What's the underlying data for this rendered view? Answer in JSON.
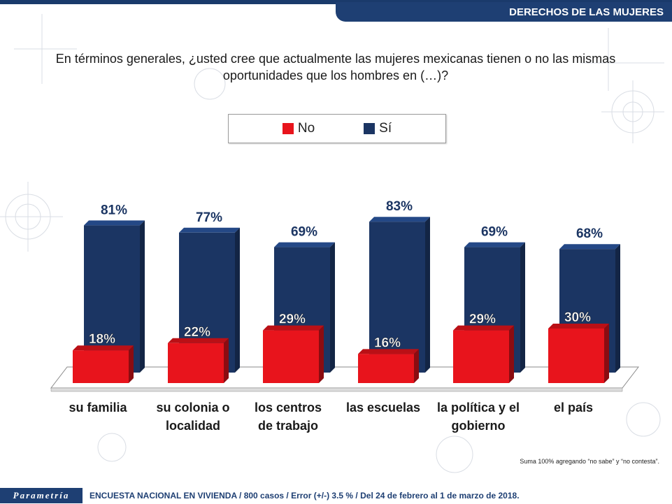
{
  "header": {
    "section_title": "DERECHOS DE LAS MUJERES",
    "watermark_word": "Parametría"
  },
  "question": {
    "line1": "En términos generales, ¿usted cree que actualmente las mujeres mexicanas tienen o no las mismas",
    "line2": "oportunidades que los hombres en (…)?"
  },
  "legend": {
    "items": [
      {
        "label": "No",
        "color": "#e8141c"
      },
      {
        "label": "Sí",
        "color": "#1b3563"
      }
    ]
  },
  "chart_data": {
    "type": "bar",
    "title": "",
    "categories": [
      [
        "su familia"
      ],
      [
        "su colonia o",
        "localidad"
      ],
      [
        "los centros",
        "de trabajo"
      ],
      [
        "las escuelas"
      ],
      [
        "la política y el",
        "gobierno"
      ],
      [
        "el país"
      ]
    ],
    "series": [
      {
        "name": "No",
        "color": "#e8141c",
        "values": [
          18,
          22,
          29,
          16,
          29,
          30
        ],
        "labels": [
          "18%",
          "22%",
          "29%",
          "16%",
          "29%",
          "30%"
        ]
      },
      {
        "name": "Sí",
        "color": "#1b3563",
        "values": [
          81,
          77,
          69,
          83,
          69,
          68
        ],
        "labels": [
          "81%",
          "77%",
          "69%",
          "83%",
          "69%",
          "68%"
        ]
      }
    ],
    "ylim": [
      0,
      100
    ],
    "xlabel": "",
    "ylabel": "",
    "grid": false,
    "legend_position": "top-center"
  },
  "footnote": "Suma 100%  agregando “no sabe” y “no contesta”.",
  "footer": {
    "brand": "Parametría",
    "survey_info": "ENCUESTA NACIONAL EN VIVIENDA / 800 casos / Error (+/-) 3.5 % / Del 24 de febrero  al 1 de marzo de 2018."
  }
}
